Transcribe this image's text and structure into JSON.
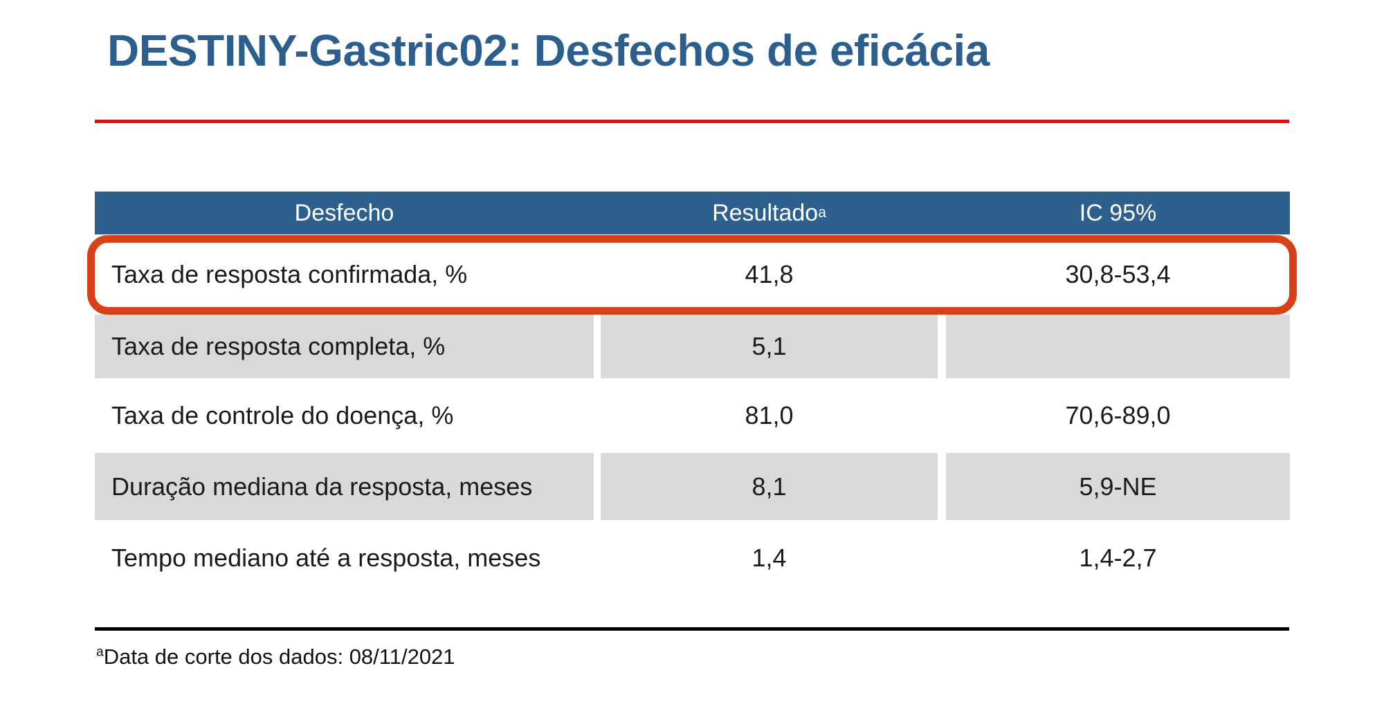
{
  "slide": {
    "title": "DESTINY-Gastric02: Desfechos de eficácia",
    "footnote": {
      "marker": "a",
      "text": "Data de corte dos dados: 08/11/2021"
    }
  },
  "table": {
    "columns": [
      {
        "label": "Desfecho"
      },
      {
        "label": "Resultado",
        "superscript": "a"
      },
      {
        "label": "IC 95%"
      }
    ],
    "rows": [
      {
        "outcome": "Taxa de resposta confirmada, %",
        "result": "41,8",
        "ci": "30,8-53,4",
        "highlighted": true,
        "shaded": false
      },
      {
        "outcome": "Taxa de resposta completa, %",
        "result": "5,1",
        "ci": "",
        "highlighted": false,
        "shaded": true
      },
      {
        "outcome": "Taxa de controle do doença, %",
        "result": "81,0",
        "ci": "70,6-89,0",
        "highlighted": false,
        "shaded": false
      },
      {
        "outcome": "Duração mediana da resposta, meses",
        "result": "8,1",
        "ci": "5,9-NE",
        "highlighted": false,
        "shaded": true
      },
      {
        "outcome": "Tempo mediano até a resposta, meses",
        "result": "1,4",
        "ci": "1,4-2,7",
        "highlighted": false,
        "shaded": false
      }
    ]
  },
  "colors": {
    "title_blue": "#2C5F8D",
    "header_blue": "#2D608C",
    "accent_red_line": "#FF0000",
    "highlight_border": "#D74119",
    "row_shaded": "#D9D9D9",
    "body_text": "#1A1A1A"
  }
}
